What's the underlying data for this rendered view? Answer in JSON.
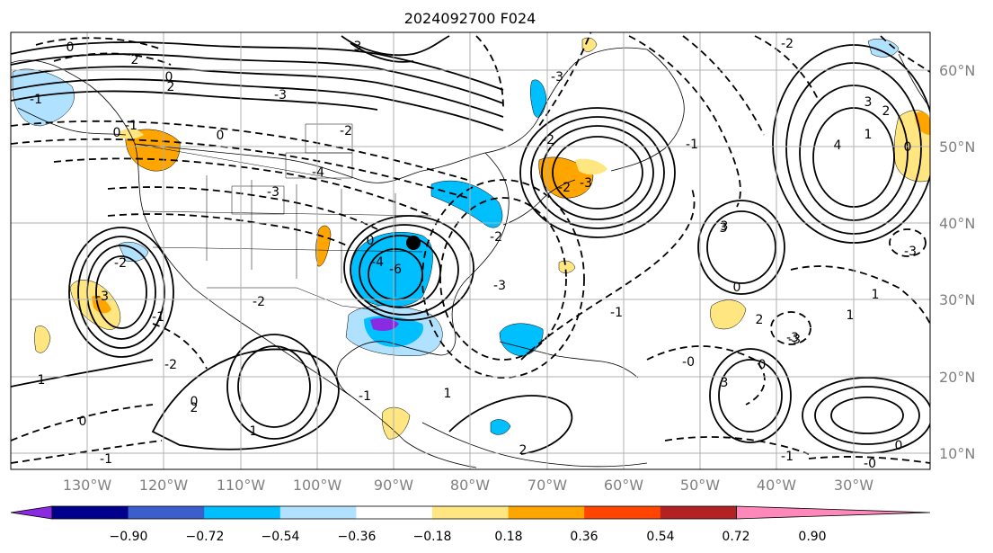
{
  "title": "2024092700 F024",
  "longitude_labels": [
    "130°W",
    "120°W",
    "110°W",
    "100°W",
    "90°W",
    "80°W",
    "70°W",
    "60°W",
    "50°W",
    "40°W",
    "30°W"
  ],
  "latitude_labels": [
    "60°N",
    "50°N",
    "40°N",
    "30°N",
    "20°N",
    "10°N"
  ],
  "colorbar": {
    "tick_labels": [
      "−0.90",
      "−0.72",
      "−0.54",
      "−0.36",
      "−0.18",
      "0.18",
      "0.36",
      "0.54",
      "0.72",
      "0.90"
    ],
    "colors": [
      "#8a2be2",
      "#00008b",
      "#3a5fcd",
      "#00bfff",
      "#b0e2ff",
      "#ffffff",
      "#ffe680",
      "#ffa500",
      "#ff4500",
      "#b22222",
      "#ff88bb"
    ]
  },
  "contour_labels": [
    "0",
    "2",
    "2",
    "-1",
    "0",
    "-1",
    "0",
    "3",
    "-3",
    "-2",
    "-2",
    "-4",
    "-3",
    "0",
    "-3",
    "-2",
    "-1",
    "0",
    "-6",
    "-4",
    "-2",
    "-3",
    "-2",
    "-2",
    "-3",
    "-3",
    "-1",
    "-1",
    "-0",
    "0",
    "3",
    "4",
    "3",
    "2",
    "-2",
    "1",
    "0",
    "-3",
    "3",
    "0",
    "2",
    "-3",
    "1",
    "1",
    "0",
    "1",
    "0",
    "-1",
    "1",
    "2",
    "-2",
    "-1",
    "1",
    "2",
    "0",
    "-0",
    "-1",
    "-3",
    "3"
  ],
  "marker": "storm-center-marker"
}
